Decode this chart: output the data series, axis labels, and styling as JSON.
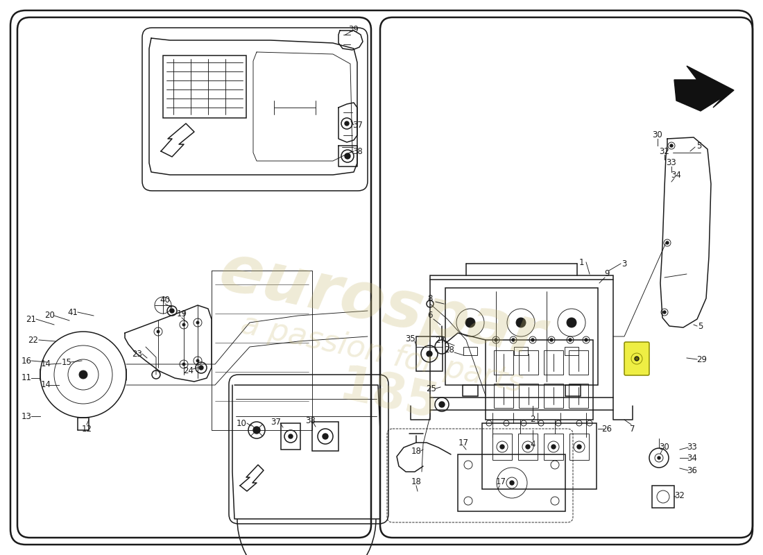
{
  "bg_color": "#ffffff",
  "lc": "#1a1a1a",
  "wm_color": "#c8b870",
  "fig_w": 11.0,
  "fig_h": 8.0,
  "dpi": 100,
  "lw_border": 1.8,
  "lw_part": 1.1,
  "lw_thin": 0.65,
  "lfs": 8.5
}
